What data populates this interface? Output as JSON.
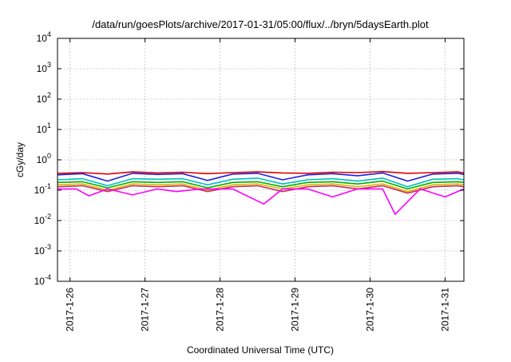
{
  "chart_data": {
    "type": "line",
    "title": "/data/run/goesPlots/archive/2017-01-31/05:00/flux/../bryn/5daysEarth.plot",
    "xlabel": "Coordinated Universal Time (UTC)",
    "ylabel": "cGy/day",
    "yscale": "log",
    "ylim": [
      0.0001,
      10000
    ],
    "xlim": [
      "2017-01-25T20:00",
      "2017-01-31T06:00"
    ],
    "grid": true,
    "legend": "none",
    "yticks": [
      {
        "base": "10",
        "exp": "-4"
      },
      {
        "base": "10",
        "exp": "-3"
      },
      {
        "base": "10",
        "exp": "-2"
      },
      {
        "base": "10",
        "exp": "-1"
      },
      {
        "base": "10",
        "exp": "0"
      },
      {
        "base": "10",
        "exp": "1"
      },
      {
        "base": "10",
        "exp": "2"
      },
      {
        "base": "10",
        "exp": "3"
      },
      {
        "base": "10",
        "exp": "4"
      }
    ],
    "xticks": [
      "2017-1-26",
      "2017-1-27",
      "2017-1-28",
      "2017-1-29",
      "2017-1-30",
      "2017-1-31"
    ],
    "series": [
      {
        "color": "#e00000",
        "x": [
          "2017-01-25T20:00",
          "2017-01-26T04:00",
          "2017-01-26T12:00",
          "2017-01-26T20:00",
          "2017-01-27T04:00",
          "2017-01-27T12:00",
          "2017-01-27T20:00",
          "2017-01-28T04:00",
          "2017-01-28T12:00",
          "2017-01-28T20:00",
          "2017-01-29T04:00",
          "2017-01-29T12:00",
          "2017-01-29T20:00",
          "2017-01-30T04:00",
          "2017-01-30T12:00",
          "2017-01-30T20:00",
          "2017-01-31T04:00",
          "2017-01-31T06:00"
        ],
        "values": [
          0.36,
          0.38,
          0.34,
          0.4,
          0.37,
          0.39,
          0.35,
          0.38,
          0.4,
          0.37,
          0.36,
          0.39,
          0.38,
          0.41,
          0.36,
          0.38,
          0.4,
          0.37
        ]
      },
      {
        "color": "#2020e0",
        "x": [
          "2017-01-25T20:00",
          "2017-01-26T04:00",
          "2017-01-26T12:00",
          "2017-01-26T20:00",
          "2017-01-27T04:00",
          "2017-01-27T12:00",
          "2017-01-27T20:00",
          "2017-01-28T04:00",
          "2017-01-28T12:00",
          "2017-01-28T20:00",
          "2017-01-29T04:00",
          "2017-01-29T12:00",
          "2017-01-29T20:00",
          "2017-01-30T04:00",
          "2017-01-30T12:00",
          "2017-01-30T20:00",
          "2017-01-31T04:00",
          "2017-01-31T06:00"
        ],
        "values": [
          0.32,
          0.35,
          0.2,
          0.36,
          0.33,
          0.35,
          0.21,
          0.34,
          0.36,
          0.22,
          0.32,
          0.35,
          0.3,
          0.37,
          0.2,
          0.34,
          0.36,
          0.33
        ]
      },
      {
        "color": "#00c0c0",
        "x": [
          "2017-01-25T20:00",
          "2017-01-26T04:00",
          "2017-01-26T12:00",
          "2017-01-26T20:00",
          "2017-01-27T04:00",
          "2017-01-27T12:00",
          "2017-01-27T20:00",
          "2017-01-28T04:00",
          "2017-01-28T12:00",
          "2017-01-28T20:00",
          "2017-01-29T04:00",
          "2017-01-29T12:00",
          "2017-01-29T20:00",
          "2017-01-30T04:00",
          "2017-01-30T12:00",
          "2017-01-30T20:00",
          "2017-01-31T04:00",
          "2017-01-31T06:00"
        ],
        "values": [
          0.22,
          0.24,
          0.14,
          0.24,
          0.23,
          0.24,
          0.15,
          0.23,
          0.25,
          0.16,
          0.22,
          0.24,
          0.2,
          0.25,
          0.13,
          0.23,
          0.24,
          0.22
        ]
      },
      {
        "color": "#00b000",
        "x": [
          "2017-01-25T20:00",
          "2017-01-26T04:00",
          "2017-01-26T12:00",
          "2017-01-26T20:00",
          "2017-01-27T04:00",
          "2017-01-27T12:00",
          "2017-01-27T20:00",
          "2017-01-28T04:00",
          "2017-01-28T12:00",
          "2017-01-28T20:00",
          "2017-01-29T04:00",
          "2017-01-29T12:00",
          "2017-01-29T20:00",
          "2017-01-30T04:00",
          "2017-01-30T12:00",
          "2017-01-30T20:00",
          "2017-01-31T04:00",
          "2017-01-31T06:00"
        ],
        "values": [
          0.18,
          0.19,
          0.12,
          0.19,
          0.18,
          0.19,
          0.12,
          0.18,
          0.19,
          0.13,
          0.18,
          0.19,
          0.16,
          0.2,
          0.11,
          0.18,
          0.19,
          0.18
        ]
      },
      {
        "color": "#e8b000",
        "x": [
          "2017-01-25T20:00",
          "2017-01-26T04:00",
          "2017-01-26T12:00",
          "2017-01-26T20:00",
          "2017-01-27T04:00",
          "2017-01-27T12:00",
          "2017-01-27T20:00",
          "2017-01-28T04:00",
          "2017-01-28T12:00",
          "2017-01-28T20:00",
          "2017-01-29T04:00",
          "2017-01-29T12:00",
          "2017-01-29T20:00",
          "2017-01-30T04:00",
          "2017-01-30T12:00",
          "2017-01-30T20:00",
          "2017-01-31T04:00",
          "2017-01-31T06:00"
        ],
        "values": [
          0.15,
          0.16,
          0.1,
          0.16,
          0.15,
          0.16,
          0.1,
          0.15,
          0.16,
          0.11,
          0.15,
          0.16,
          0.13,
          0.16,
          0.09,
          0.15,
          0.16,
          0.15
        ]
      },
      {
        "color": "#c03060",
        "x": [
          "2017-01-25T20:00",
          "2017-01-26T04:00",
          "2017-01-26T12:00",
          "2017-01-26T20:00",
          "2017-01-27T04:00",
          "2017-01-27T12:00",
          "2017-01-27T20:00",
          "2017-01-28T04:00",
          "2017-01-28T12:00",
          "2017-01-28T20:00",
          "2017-01-29T04:00",
          "2017-01-29T12:00",
          "2017-01-29T20:00",
          "2017-01-30T04:00",
          "2017-01-30T12:00",
          "2017-01-30T20:00",
          "2017-01-31T04:00",
          "2017-01-31T06:00"
        ],
        "values": [
          0.13,
          0.14,
          0.09,
          0.14,
          0.13,
          0.14,
          0.09,
          0.13,
          0.14,
          0.09,
          0.13,
          0.14,
          0.11,
          0.14,
          0.08,
          0.13,
          0.14,
          0.13
        ]
      },
      {
        "color": "#ff00ff",
        "x": [
          "2017-01-25T20:00",
          "2017-01-26T02:00",
          "2017-01-26T06:00",
          "2017-01-26T12:00",
          "2017-01-26T20:00",
          "2017-01-27T04:00",
          "2017-01-27T10:00",
          "2017-01-27T18:00",
          "2017-01-28T04:00",
          "2017-01-28T14:00",
          "2017-01-28T20:00",
          "2017-01-29T04:00",
          "2017-01-29T12:00",
          "2017-01-29T20:00",
          "2017-01-30T04:00",
          "2017-01-30T08:00",
          "2017-01-30T16:00",
          "2017-01-31T00:00",
          "2017-01-31T06:00"
        ],
        "values": [
          0.11,
          0.11,
          0.065,
          0.11,
          0.07,
          0.11,
          0.09,
          0.11,
          0.11,
          0.035,
          0.11,
          0.11,
          0.06,
          0.11,
          0.11,
          0.016,
          0.11,
          0.06,
          0.11
        ]
      }
    ]
  }
}
